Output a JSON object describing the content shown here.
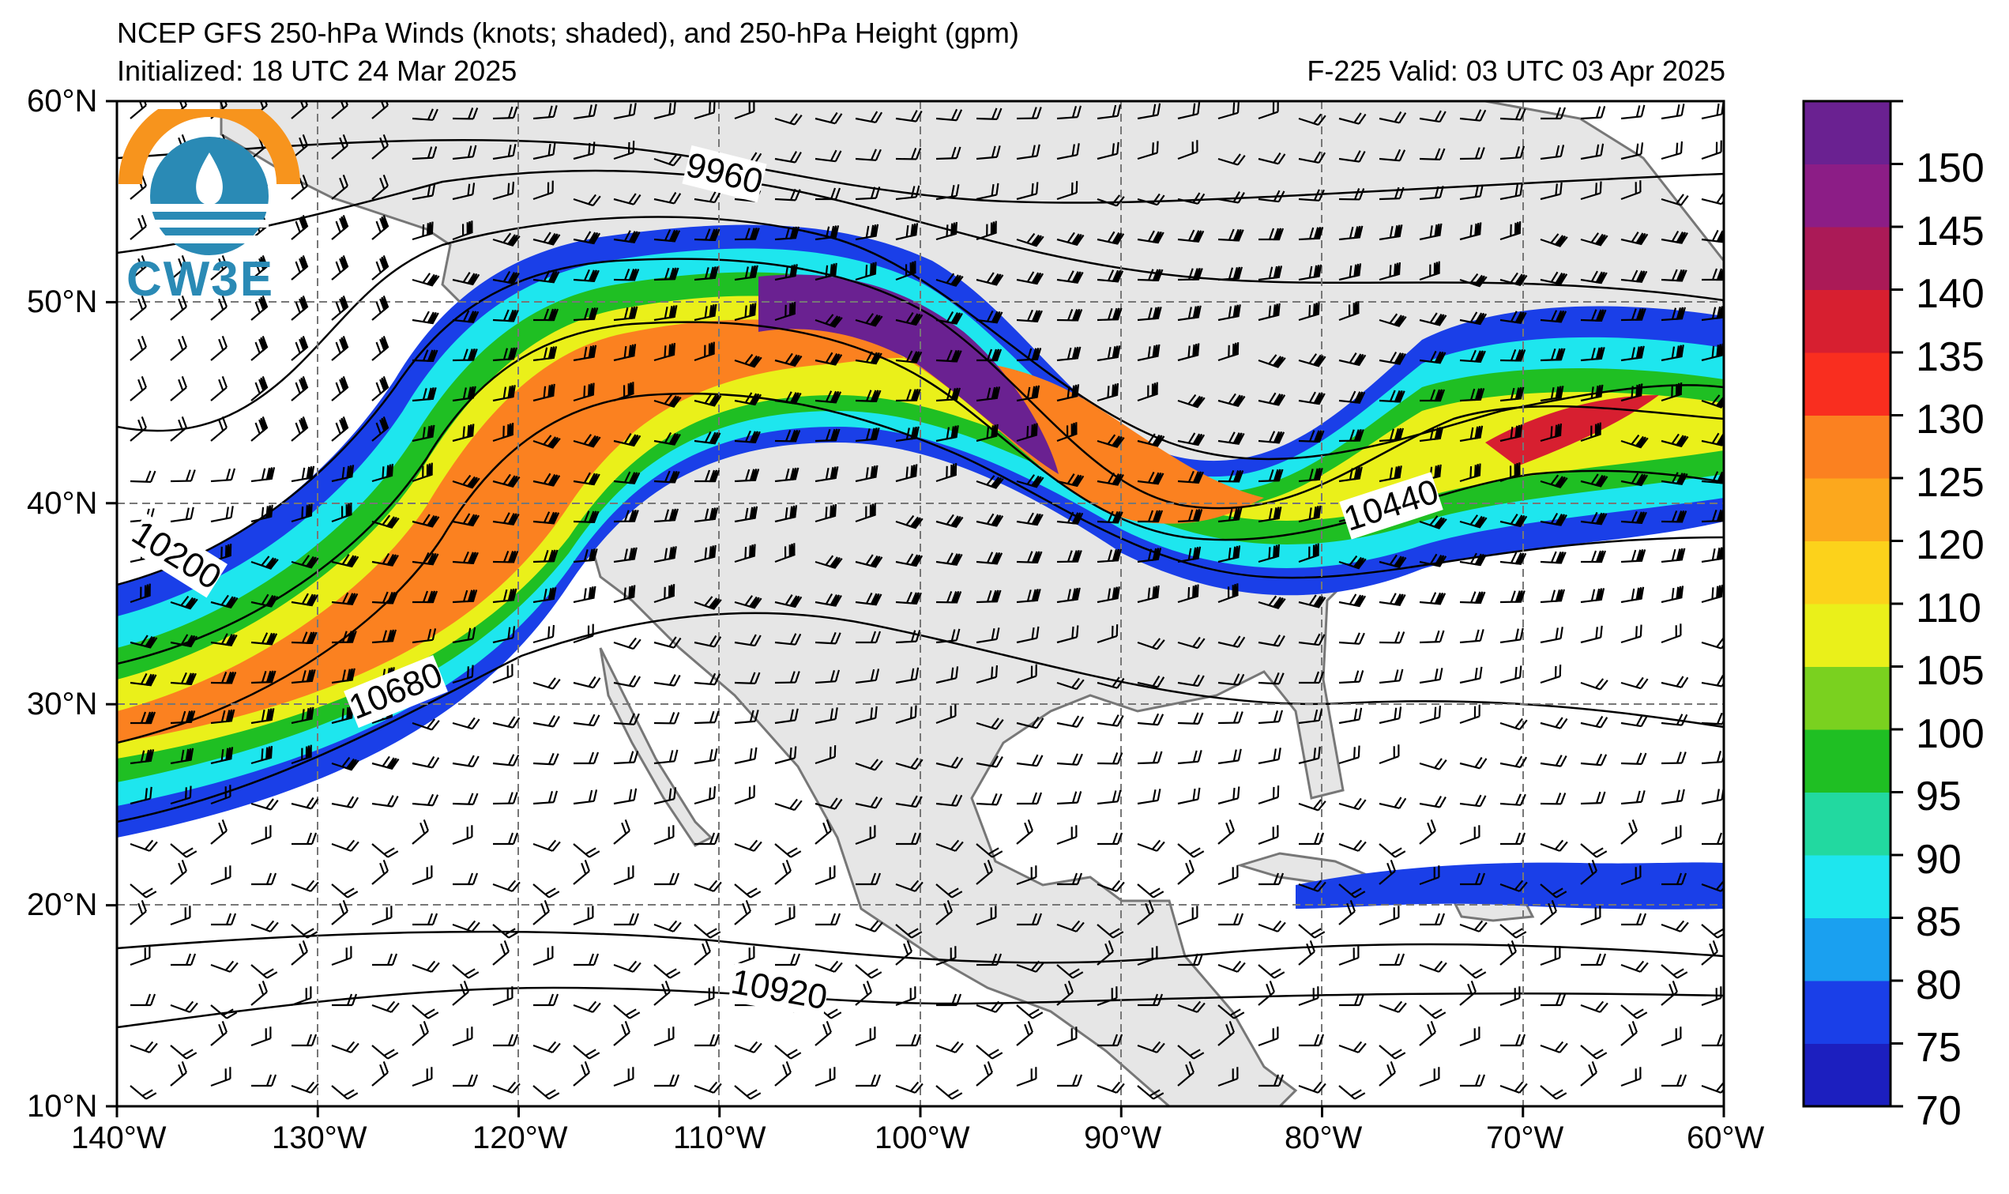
{
  "header": {
    "title": "NCEP GFS 250-hPa Winds (knots; shaded), and 250-hPa Height (gpm)",
    "initialized": "Initialized: 18 UTC 24 Mar 2025",
    "valid": "F-225  Valid: 03 UTC 03 Apr 2025"
  },
  "map": {
    "lon_range": [
      -140,
      -60
    ],
    "lat_range": [
      10,
      60
    ],
    "lon_ticks": [
      "140°W",
      "130°W",
      "120°W",
      "110°W",
      "100°W",
      "90°W",
      "80°W",
      "70°W",
      "60°W"
    ],
    "lat_ticks": [
      "60°N",
      "50°N",
      "40°N",
      "30°N",
      "20°N",
      "10°N"
    ],
    "contour_labels": [
      "9960",
      "10200",
      "10440",
      "10680",
      "10920"
    ]
  },
  "colorbar": {
    "levels": [
      "70",
      "75",
      "80",
      "85",
      "90",
      "95",
      "100",
      "105",
      "110",
      "120",
      "125",
      "130",
      "135",
      "140",
      "145",
      "150"
    ],
    "colors": [
      "#1c1fbf",
      "#1a3fe8",
      "#1aa0f0",
      "#1ee6ee",
      "#22d9a0",
      "#1fbf23",
      "#7ad11f",
      "#eaf01a",
      "#fcd21b",
      "#fca81d",
      "#fb8120",
      "#f92e1f",
      "#d71f30",
      "#ab1a57",
      "#8c1d86",
      "#6a2191"
    ]
  },
  "logo": {
    "text": "CW3E",
    "accent": "#2a8ab5",
    "sun": "#f7941d"
  }
}
